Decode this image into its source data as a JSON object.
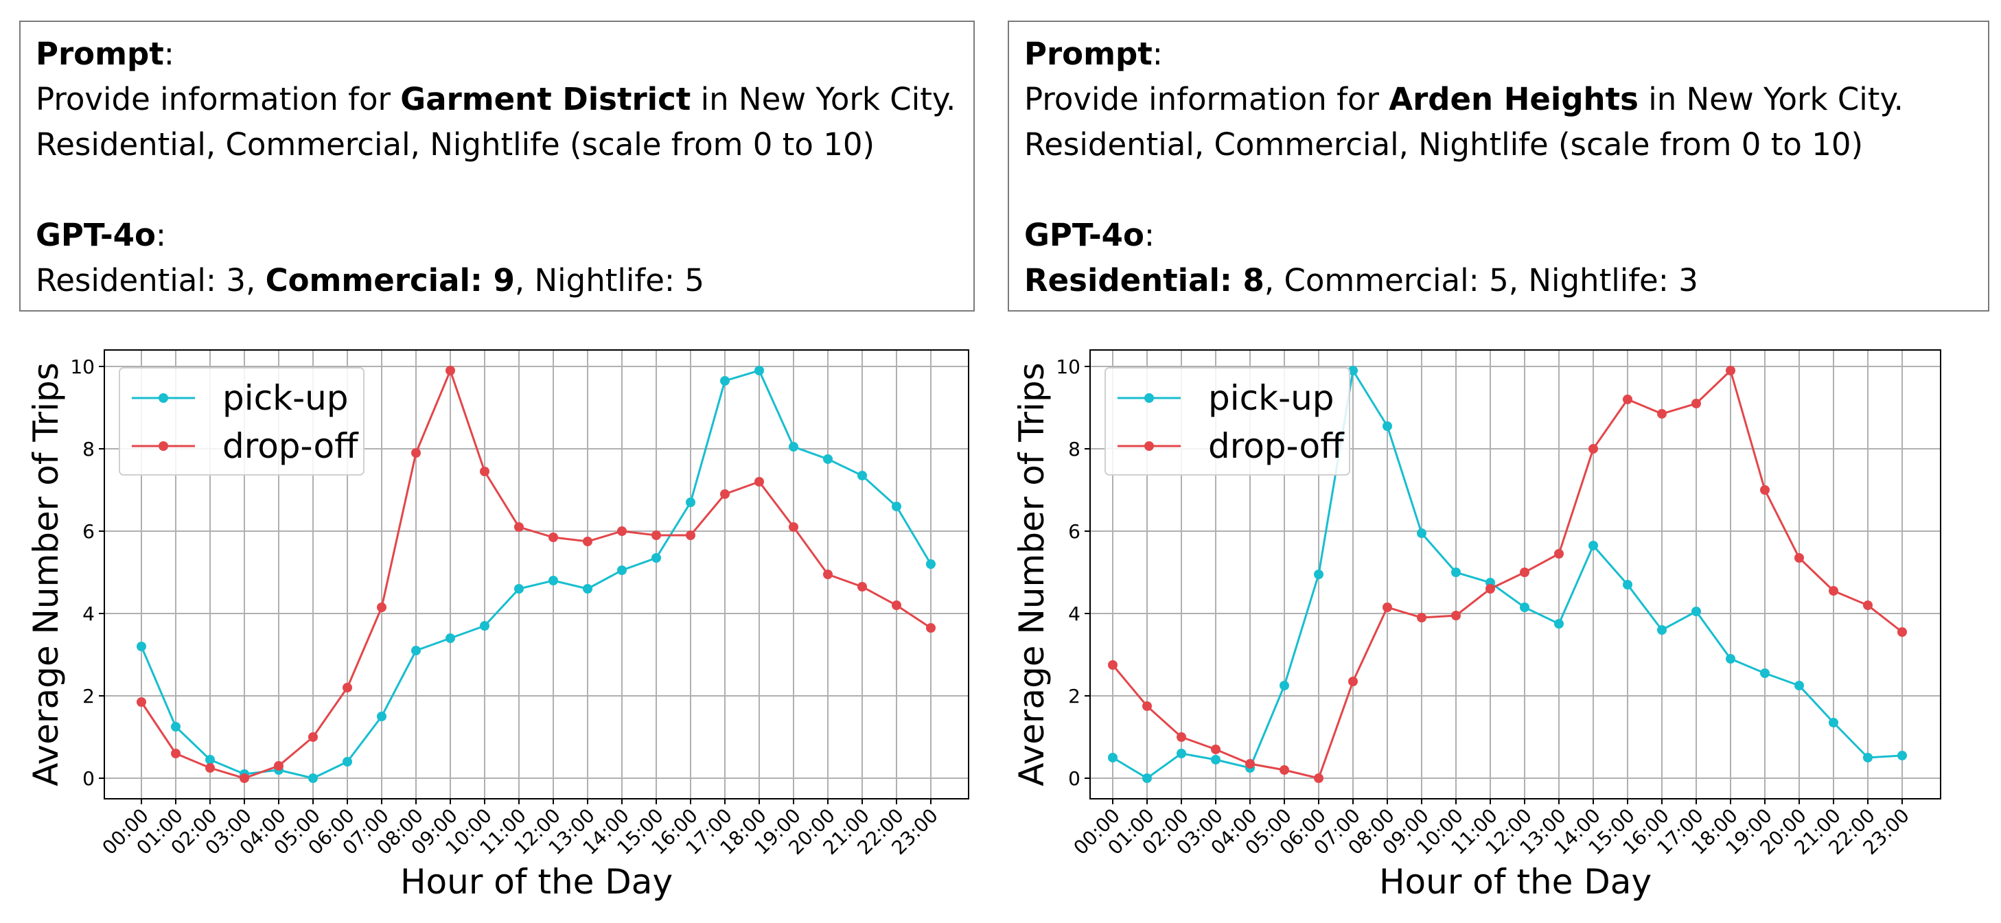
{
  "panels": [
    {
      "prompt": {
        "prompt_label": "Prompt",
        "line1_pre": "Provide information for ",
        "line1_bold": "Garment District",
        "line1_post": " in New York City.",
        "line2": "Residential, Commercial, Nightlife (scale from 0 to 10)",
        "model_label": "GPT-4o",
        "answer_a": "Residential: 3, ",
        "answer_b": "Commercial: 9",
        "answer_c": ", Nightlife: 5"
      }
    },
    {
      "prompt": {
        "prompt_label": "Prompt",
        "line1_pre": "Provide information for ",
        "line1_bold": "Arden Heights",
        "line1_post": " in New York City.",
        "line2": "Residential, Commercial, Nightlife (scale from 0 to 10)",
        "model_label": "GPT-4o",
        "answer_a": "",
        "answer_b": "Residential: 8",
        "answer_c": ", Commercial: 5, Nightlife: 3"
      }
    }
  ],
  "chart_data": [
    {
      "type": "line",
      "xlabel": "Hour of the Day",
      "ylabel": "Average Number of Trips",
      "ylim": [
        -0.5,
        10.4
      ],
      "yticks": [
        0,
        2,
        4,
        6,
        8,
        10
      ],
      "grid": true,
      "legend_position": "top-left",
      "categories": [
        "00:00",
        "01:00",
        "02:00",
        "03:00",
        "04:00",
        "05:00",
        "06:00",
        "07:00",
        "08:00",
        "09:00",
        "10:00",
        "11:00",
        "12:00",
        "13:00",
        "14:00",
        "15:00",
        "16:00",
        "17:00",
        "18:00",
        "19:00",
        "20:00",
        "21:00",
        "22:00",
        "23:00"
      ],
      "series": [
        {
          "name": "pick-up",
          "color": "#17becf",
          "values": [
            3.2,
            1.25,
            0.45,
            0.1,
            0.2,
            0.0,
            0.4,
            1.5,
            3.1,
            3.4,
            3.7,
            4.6,
            4.8,
            4.6,
            5.05,
            5.35,
            6.7,
            9.65,
            9.9,
            8.05,
            7.75,
            7.35,
            6.6,
            5.2
          ]
        },
        {
          "name": "drop-off",
          "color": "#e3464a",
          "values": [
            1.85,
            0.6,
            0.25,
            0.0,
            0.3,
            1.0,
            2.2,
            4.15,
            7.9,
            9.9,
            7.45,
            6.1,
            5.85,
            5.75,
            6.0,
            5.9,
            5.9,
            6.9,
            7.2,
            6.1,
            4.95,
            4.65,
            4.2,
            3.65
          ]
        }
      ]
    },
    {
      "type": "line",
      "xlabel": "Hour of the Day",
      "ylabel": "Average Number of Trips",
      "ylim": [
        -0.5,
        10.4
      ],
      "yticks": [
        0,
        2,
        4,
        6,
        8,
        10
      ],
      "grid": true,
      "legend_position": "top-left",
      "categories": [
        "00:00",
        "01:00",
        "02:00",
        "03:00",
        "04:00",
        "05:00",
        "06:00",
        "07:00",
        "08:00",
        "09:00",
        "10:00",
        "11:00",
        "12:00",
        "13:00",
        "14:00",
        "15:00",
        "16:00",
        "17:00",
        "18:00",
        "19:00",
        "20:00",
        "21:00",
        "22:00",
        "23:00"
      ],
      "series": [
        {
          "name": "pick-up",
          "color": "#17becf",
          "values": [
            0.5,
            0.0,
            0.6,
            0.45,
            0.25,
            2.25,
            4.95,
            9.9,
            8.55,
            5.95,
            5.0,
            4.75,
            4.15,
            3.75,
            5.65,
            4.7,
            3.6,
            4.05,
            2.9,
            2.55,
            2.25,
            1.35,
            0.5,
            0.55
          ]
        },
        {
          "name": "drop-off",
          "color": "#e3464a",
          "values": [
            2.75,
            1.75,
            1.0,
            0.7,
            0.35,
            0.2,
            0.0,
            2.35,
            4.15,
            3.9,
            3.95,
            4.6,
            5.0,
            5.45,
            8.0,
            9.2,
            8.85,
            9.1,
            9.9,
            7.0,
            5.35,
            4.55,
            4.2,
            3.55
          ]
        }
      ]
    }
  ]
}
